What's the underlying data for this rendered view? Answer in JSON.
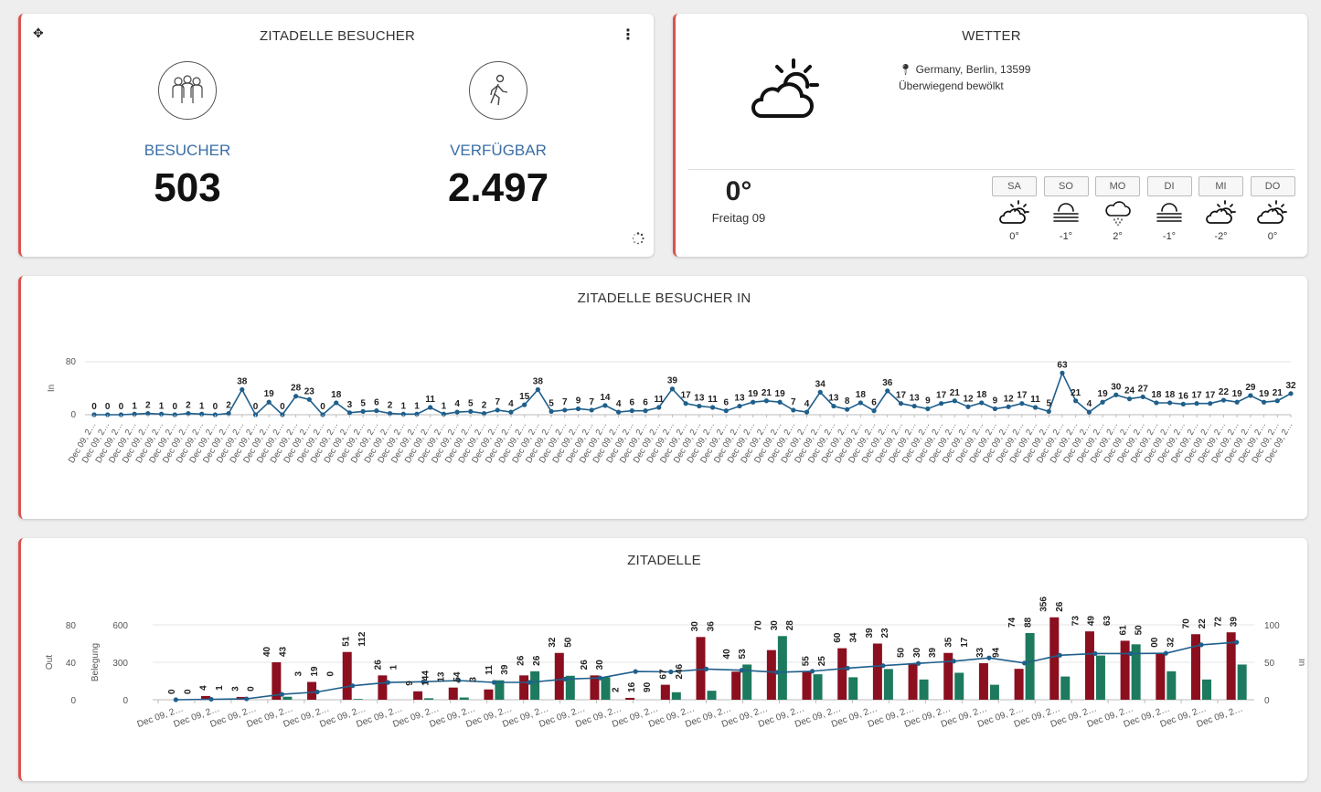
{
  "visitors_card": {
    "title": "ZITADELLE BESUCHER",
    "icons": {
      "move": "move-icon",
      "menu": "kebab-menu-icon",
      "loading": "spinner-icon"
    },
    "visitors": {
      "label": "BESUCHER",
      "value": "503",
      "icon": "group-people-icon"
    },
    "available": {
      "label": "VERFÜGBAR",
      "value": "2.497",
      "icon": "walking-person-icon"
    },
    "label_color": "#3a6ea5"
  },
  "weather_card": {
    "title": "WETTER",
    "location": "Germany, Berlin, 13599",
    "condition": "Überwiegend bewölkt",
    "current_temp": "0°",
    "current_day": "Freitag 09",
    "main_icon": "partly-cloudy-icon",
    "forecast": [
      {
        "day": "SA",
        "temp": "0°",
        "icon": "partly-cloudy-icon"
      },
      {
        "day": "SO",
        "temp": "-1°",
        "icon": "fog-icon"
      },
      {
        "day": "MO",
        "temp": "2°",
        "icon": "snow-cloud-icon"
      },
      {
        "day": "DI",
        "temp": "-1°",
        "icon": "fog-icon"
      },
      {
        "day": "MI",
        "temp": "-2°",
        "icon": "partly-cloudy-icon"
      },
      {
        "day": "DO",
        "temp": "0°",
        "icon": "partly-cloudy-icon"
      }
    ]
  },
  "in_card": {
    "title": "ZITADELLE BESUCHER IN"
  },
  "zitadelle_card": {
    "title": "ZITADELLE"
  },
  "chart_data": [
    {
      "type": "line",
      "title": "ZITADELLE BESUCHER IN",
      "xlabel": "",
      "ylabel": "In",
      "ylim": [
        0,
        80
      ],
      "yticks": [
        0,
        80
      ],
      "grid": true,
      "x_tick_label": "Dec 09, 2…",
      "color": "#1f5f8b",
      "values": [
        0,
        0,
        0,
        1,
        2,
        1,
        0,
        2,
        1,
        0,
        2,
        38,
        0,
        19,
        0,
        28,
        23,
        0,
        18,
        3,
        5,
        6,
        2,
        1,
        1,
        11,
        1,
        4,
        5,
        2,
        7,
        4,
        15,
        38,
        5,
        7,
        9,
        7,
        14,
        4,
        6,
        6,
        11,
        39,
        17,
        13,
        11,
        6,
        13,
        19,
        21,
        19,
        7,
        4,
        34,
        13,
        8,
        18,
        6,
        36,
        17,
        13,
        9,
        17,
        21,
        12,
        18,
        9,
        12,
        17,
        11,
        5,
        63,
        21,
        4,
        19,
        30,
        24,
        27,
        18,
        18,
        16,
        17,
        17,
        22,
        19,
        29,
        19,
        21,
        32
      ]
    },
    {
      "type": "bar",
      "title": "ZITADELLE",
      "xlabel": "",
      "x_tick_label": "Dec 09, 2…",
      "x_tick_count": 30,
      "axes": {
        "out": {
          "label": "Out",
          "ticks": [
            0,
            40,
            80
          ]
        },
        "belegung": {
          "label": "Belegung",
          "ticks": [
            0,
            300,
            600
          ]
        },
        "in": {
          "label": "In",
          "ticks": [
            0,
            50,
            100
          ]
        }
      },
      "series": [
        {
          "name": "Out",
          "color": "#8b0f1f",
          "axis": "out"
        },
        {
          "name": "In",
          "color": "#1d7a5e",
          "axis": "in"
        },
        {
          "name": "Belegung",
          "color": "#1f5f8b",
          "axis": "belegung"
        }
      ],
      "pairs": [
        {
          "out": 0,
          "in": 0,
          "bel": 0
        },
        {
          "out": 4,
          "in": 1,
          "bel": 4
        },
        {
          "out": 3,
          "in": 0,
          "bel": 7
        },
        {
          "out": 40,
          "in": 4,
          "bel": 43
        },
        {
          "out": 19,
          "in": 0,
          "bel": 62
        },
        {
          "out": 51,
          "in": 1,
          "bel": 112
        },
        {
          "out": 26,
          "in": 0,
          "bel": 138
        },
        {
          "out": 9,
          "in": 2,
          "bel": 144
        },
        {
          "out": 13,
          "in": 3,
          "bel": 154
        },
        {
          "out": 11,
          "in": 26,
          "bel": 139
        },
        {
          "out": 26,
          "in": 38,
          "bel": 139
        },
        {
          "out": 50,
          "in": 32,
          "bel": 165
        },
        {
          "out": 26,
          "in": 30,
          "bel": 174
        },
        {
          "out": 2,
          "in": 0,
          "bel": 226
        },
        {
          "out": 16,
          "in": 10,
          "bel": 223
        },
        {
          "out": 67,
          "in": 12,
          "bel": 246
        },
        {
          "out": 30,
          "in": 47,
          "bel": 236
        },
        {
          "out": 53,
          "in": 85,
          "bel": 220
        },
        {
          "out": 30,
          "in": 34,
          "bel": 228
        },
        {
          "out": 55,
          "in": 30,
          "bel": 253
        },
        {
          "out": 60,
          "in": 41,
          "bel": 273
        },
        {
          "out": 39,
          "in": 27,
          "bel": 291
        },
        {
          "out": 50,
          "in": 36,
          "bel": 309
        },
        {
          "out": 39,
          "in": 20,
          "bel": 335
        },
        {
          "out": 33,
          "in": 89,
          "bel": 294
        },
        {
          "out": 88,
          "in": 31,
          "bel": 356
        },
        {
          "out": 73,
          "in": 59,
          "bel": 370
        },
        {
          "out": 63,
          "in": 74,
          "bel": 370
        },
        {
          "out": 50,
          "in": 38,
          "bel": 372
        },
        {
          "out": 70,
          "in": 27,
          "bel": 440
        },
        {
          "out": 72,
          "in": 47,
          "bel": 460
        }
      ],
      "labels": [
        "0",
        "0",
        "4",
        "1",
        "3",
        "0",
        "40",
        "43",
        "3",
        "19",
        "0",
        "51",
        "112",
        "26",
        "1",
        "9",
        "144",
        "13",
        "54",
        "3",
        "11",
        "39",
        "26",
        "26",
        "32",
        "50",
        "26",
        "30",
        "2",
        "16",
        "90",
        "67",
        "246",
        "30",
        "36",
        "40",
        "53",
        "70",
        "30",
        "28",
        "55",
        "25",
        "60",
        "34",
        "39",
        "23",
        "50",
        "30",
        "39",
        "35",
        "17",
        "33",
        "94",
        "74",
        "88",
        "356",
        "26",
        "73",
        "49",
        "63",
        "61",
        "50",
        "00",
        "32",
        "70",
        "22",
        "72",
        "39"
      ]
    }
  ]
}
